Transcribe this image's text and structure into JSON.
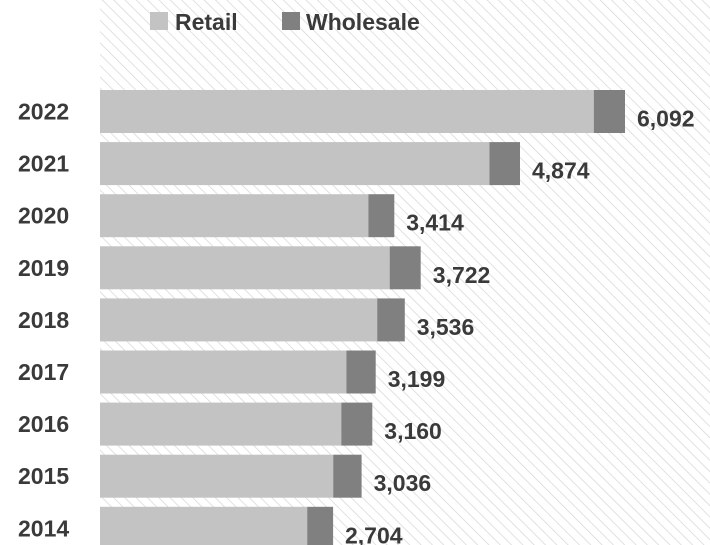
{
  "chart_data": {
    "type": "bar",
    "orientation": "horizontal",
    "stacked": true,
    "categories": [
      "2022",
      "2021",
      "2020",
      "2019",
      "2018",
      "2017",
      "2016",
      "2015",
      "2014"
    ],
    "series": [
      {
        "name": "Retail",
        "color": "#c3c3c3",
        "values": [
          5730,
          4520,
          3114,
          3362,
          3216,
          2859,
          2800,
          2706,
          2404
        ]
      },
      {
        "name": "Wholesale",
        "color": "#808080",
        "values": [
          362,
          354,
          300,
          360,
          320,
          340,
          360,
          330,
          300
        ]
      }
    ],
    "totals": [
      "6,092",
      "4,874",
      "3,414",
      "3,722",
      "3,536",
      "3,199",
      "3,160",
      "3,036",
      "2,704"
    ],
    "xlim": [
      0,
      6092
    ],
    "title": "",
    "xlabel": "",
    "ylabel": "",
    "legend": "top",
    "grid": false,
    "plot_background": "diagonal-hatch"
  }
}
